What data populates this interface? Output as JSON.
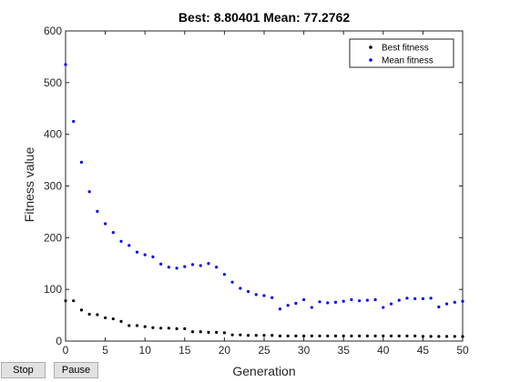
{
  "chart_data": {
    "type": "scatter",
    "title": "Best: 8.80401 Mean: 77.2762",
    "xlabel": "Generation",
    "ylabel": "Fitness value",
    "xlim": [
      0,
      50
    ],
    "ylim": [
      0,
      600
    ],
    "xticks": [
      0,
      5,
      10,
      15,
      20,
      25,
      30,
      35,
      40,
      45,
      50
    ],
    "yticks": [
      0,
      100,
      200,
      300,
      400,
      500,
      600
    ],
    "grid": false,
    "legend_position": "top-right",
    "series": [
      {
        "name": "Best fitness",
        "color": "#000000",
        "x": [
          0,
          1,
          2,
          3,
          4,
          5,
          6,
          7,
          8,
          9,
          10,
          11,
          12,
          13,
          14,
          15,
          16,
          17,
          18,
          19,
          20,
          21,
          22,
          23,
          24,
          25,
          26,
          27,
          28,
          29,
          30,
          31,
          32,
          33,
          34,
          35,
          36,
          37,
          38,
          39,
          40,
          41,
          42,
          43,
          44,
          45,
          46,
          47,
          48,
          49,
          50
        ],
        "y": [
          78,
          78,
          60,
          52,
          51,
          45,
          43,
          38,
          30,
          30,
          28,
          26,
          25,
          25,
          24,
          24,
          18,
          18,
          17,
          17,
          16,
          12,
          12,
          11,
          11,
          11,
          11,
          10,
          10,
          10,
          10,
          10,
          10,
          10,
          10,
          10,
          10,
          10,
          10,
          10,
          10,
          10,
          10,
          10,
          10,
          9,
          9,
          9,
          9,
          9,
          8.8
        ]
      },
      {
        "name": "Mean fitness",
        "color": "#0000ff",
        "x": [
          0,
          1,
          2,
          3,
          4,
          5,
          6,
          7,
          8,
          9,
          10,
          11,
          12,
          13,
          14,
          15,
          16,
          17,
          18,
          19,
          20,
          21,
          22,
          23,
          24,
          25,
          26,
          27,
          28,
          29,
          30,
          31,
          32,
          33,
          34,
          35,
          36,
          37,
          38,
          39,
          40,
          41,
          42,
          43,
          44,
          45,
          46,
          47,
          48,
          49,
          50
        ],
        "y": [
          535,
          425,
          346,
          289,
          251,
          227,
          210,
          193,
          185,
          172,
          167,
          163,
          149,
          143,
          141,
          144,
          148,
          146,
          150,
          143,
          129,
          114,
          102,
          96,
          90,
          88,
          84,
          62,
          69,
          73,
          80,
          65,
          76,
          74,
          75,
          77,
          80,
          78,
          79,
          80,
          65,
          72,
          79,
          83,
          82,
          82,
          83,
          66,
          72,
          75,
          77
        ]
      }
    ]
  },
  "controls": {
    "stop_label": "Stop",
    "pause_label": "Pause"
  }
}
